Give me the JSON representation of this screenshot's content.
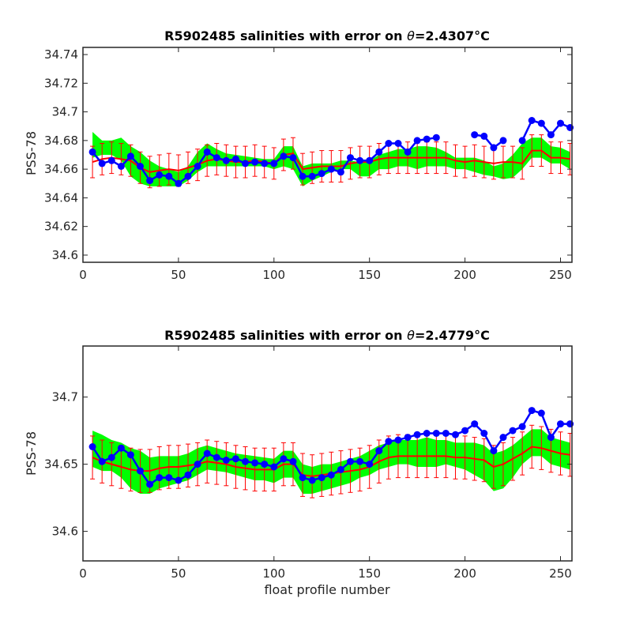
{
  "chart_data": [
    {
      "type": "scatter",
      "title_prefix": "R5902485 salinities with error on ",
      "title_theta": "θ",
      "title_value": "=2.4307",
      "title_unit": "°C",
      "xlabel": "",
      "ylabel": "PSS-78",
      "xlim": [
        0,
        256
      ],
      "ylim": [
        34.595,
        34.745
      ],
      "xticks": [
        0,
        50,
        100,
        150,
        200,
        250
      ],
      "yticks": [
        34.6,
        34.62,
        34.64,
        34.66,
        34.68,
        34.7,
        34.72,
        34.74
      ],
      "ytick_labels": [
        "34.6",
        "34.62",
        "34.64",
        "34.66",
        "34.68",
        "34.7",
        "34.72",
        "34.74"
      ],
      "grid": false,
      "colors": {
        "float": "#0000ff",
        "mapped": "#ff0000",
        "error_band": "#00ff00"
      },
      "float_salinity": {
        "x": [
          5,
          10,
          15,
          20,
          25,
          30,
          35,
          40,
          45,
          50,
          55,
          60,
          65,
          70,
          75,
          80,
          85,
          90,
          95,
          100,
          105,
          110,
          115,
          120,
          125,
          130,
          135,
          140,
          145,
          150,
          155,
          160,
          165,
          170,
          175,
          180,
          185,
          190,
          195,
          200,
          205,
          210,
          215,
          220,
          225,
          230,
          235,
          240,
          245,
          250,
          255
        ],
        "y": [
          34.672,
          34.664,
          34.666,
          34.662,
          34.669,
          34.662,
          34.652,
          34.656,
          34.655,
          34.65,
          34.655,
          34.662,
          34.672,
          34.668,
          34.666,
          34.667,
          34.664,
          34.665,
          34.664,
          34.664,
          34.669,
          34.668,
          34.655,
          34.655,
          34.657,
          34.66,
          34.658,
          34.668,
          34.666,
          34.666,
          34.672,
          34.678,
          34.678,
          34.672,
          34.68,
          34.681,
          34.682,
          null,
          null,
          null,
          34.684,
          34.683,
          34.675,
          34.68,
          null,
          34.68,
          34.694,
          34.692,
          34.684,
          34.692,
          34.689
        ]
      },
      "mapped_salinity": {
        "x": [
          5,
          10,
          15,
          20,
          25,
          30,
          35,
          40,
          45,
          50,
          55,
          60,
          65,
          70,
          75,
          80,
          85,
          90,
          95,
          100,
          105,
          110,
          115,
          120,
          125,
          130,
          135,
          140,
          145,
          150,
          155,
          160,
          165,
          170,
          175,
          180,
          185,
          190,
          195,
          200,
          205,
          210,
          215,
          220,
          225,
          230,
          235,
          240,
          245,
          250,
          255
        ],
        "y": [
          34.665,
          34.667,
          34.668,
          34.667,
          34.666,
          34.661,
          34.658,
          34.659,
          34.66,
          34.659,
          34.661,
          34.663,
          34.666,
          34.667,
          34.666,
          34.665,
          34.665,
          34.666,
          34.665,
          34.664,
          34.67,
          34.671,
          34.66,
          34.661,
          34.662,
          34.662,
          34.662,
          34.664,
          34.665,
          34.665,
          34.667,
          34.668,
          34.668,
          34.668,
          34.668,
          34.668,
          34.668,
          34.668,
          34.666,
          34.665,
          34.666,
          34.665,
          34.664,
          34.665,
          34.665,
          34.664,
          34.673,
          34.673,
          34.668,
          34.668,
          34.667
        ],
        "error": 0.011
      },
      "climatology_band": {
        "x": [
          5,
          10,
          15,
          20,
          25,
          30,
          35,
          40,
          45,
          50,
          55,
          60,
          65,
          70,
          75,
          80,
          85,
          90,
          95,
          100,
          105,
          110,
          115,
          120,
          125,
          130,
          135,
          140,
          145,
          150,
          155,
          160,
          165,
          170,
          175,
          180,
          185,
          190,
          195,
          200,
          205,
          210,
          215,
          220,
          225,
          230,
          235,
          240,
          245,
          250,
          255
        ],
        "lower": [
          34.668,
          34.67,
          34.67,
          34.666,
          34.655,
          34.65,
          34.648,
          34.648,
          34.648,
          34.648,
          34.652,
          34.658,
          34.662,
          34.662,
          34.662,
          34.662,
          34.662,
          34.662,
          34.662,
          34.66,
          34.662,
          34.66,
          34.648,
          34.652,
          34.655,
          34.658,
          34.66,
          34.66,
          34.655,
          34.655,
          34.66,
          34.66,
          34.662,
          34.662,
          34.66,
          34.662,
          34.662,
          34.662,
          34.66,
          34.66,
          34.658,
          34.656,
          34.655,
          34.653,
          34.654,
          34.66,
          34.668,
          34.668,
          34.664,
          34.664,
          34.66
        ],
        "upper": [
          34.686,
          34.68,
          34.68,
          34.682,
          34.676,
          34.672,
          34.666,
          34.662,
          34.66,
          34.658,
          34.662,
          34.672,
          34.678,
          34.674,
          34.671,
          34.67,
          34.669,
          34.668,
          34.667,
          34.667,
          34.676,
          34.676,
          34.662,
          34.664,
          34.664,
          34.664,
          34.666,
          34.666,
          34.665,
          34.666,
          34.67,
          34.672,
          34.674,
          34.674,
          34.676,
          34.676,
          34.675,
          34.672,
          34.668,
          34.668,
          34.668,
          34.666,
          34.662,
          34.664,
          34.67,
          34.678,
          34.682,
          34.682,
          34.676,
          34.675,
          34.672
        ]
      }
    },
    {
      "type": "scatter",
      "title_prefix": "R5902485 salinities with error on ",
      "title_theta": "θ",
      "title_value": "=2.4779",
      "title_unit": "°C",
      "xlabel": "float profile number",
      "ylabel": "PSS-78",
      "xlim": [
        0,
        256
      ],
      "ylim": [
        34.578,
        34.738
      ],
      "xticks": [
        0,
        50,
        100,
        150,
        200,
        250
      ],
      "yticks": [
        34.6,
        34.65,
        34.7
      ],
      "ytick_labels": [
        "34.6",
        "34.65",
        "34.7"
      ],
      "grid": false,
      "colors": {
        "float": "#0000ff",
        "mapped": "#ff0000",
        "error_band": "#00ff00"
      },
      "float_salinity": {
        "x": [
          5,
          10,
          15,
          20,
          25,
          30,
          35,
          40,
          45,
          50,
          55,
          60,
          65,
          70,
          75,
          80,
          85,
          90,
          95,
          100,
          105,
          110,
          115,
          120,
          125,
          130,
          135,
          140,
          145,
          150,
          155,
          160,
          165,
          170,
          175,
          180,
          185,
          190,
          195,
          200,
          205,
          210,
          215,
          220,
          225,
          230,
          235,
          240,
          245,
          250,
          255
        ],
        "y": [
          34.663,
          34.652,
          34.655,
          34.662,
          34.657,
          34.645,
          34.635,
          34.64,
          34.64,
          34.638,
          34.642,
          34.65,
          34.658,
          34.655,
          34.653,
          34.654,
          34.652,
          34.651,
          34.65,
          34.648,
          34.654,
          34.652,
          34.64,
          34.638,
          34.64,
          34.642,
          34.646,
          34.652,
          34.652,
          34.65,
          34.66,
          34.667,
          34.668,
          34.67,
          34.672,
          34.673,
          34.673,
          34.673,
          34.672,
          34.675,
          34.68,
          34.673,
          34.66,
          34.67,
          34.675,
          34.678,
          34.69,
          34.688,
          34.67,
          34.68,
          34.68
        ]
      },
      "mapped_salinity": {
        "x": [
          5,
          10,
          15,
          20,
          25,
          30,
          35,
          40,
          45,
          50,
          55,
          60,
          65,
          70,
          75,
          80,
          85,
          90,
          95,
          100,
          105,
          110,
          115,
          120,
          125,
          130,
          135,
          140,
          145,
          150,
          155,
          160,
          165,
          170,
          175,
          180,
          185,
          190,
          195,
          200,
          205,
          210,
          215,
          220,
          225,
          230,
          235,
          240,
          245,
          250,
          255
        ],
        "y": [
          34.655,
          34.652,
          34.65,
          34.648,
          34.646,
          34.645,
          34.645,
          34.647,
          34.648,
          34.648,
          34.649,
          34.65,
          34.652,
          34.651,
          34.65,
          34.648,
          34.647,
          34.646,
          34.646,
          34.646,
          34.65,
          34.65,
          34.642,
          34.641,
          34.642,
          34.643,
          34.644,
          34.645,
          34.646,
          34.648,
          34.652,
          34.655,
          34.656,
          34.656,
          34.656,
          34.656,
          34.656,
          34.656,
          34.655,
          34.655,
          34.654,
          34.653,
          34.648,
          34.65,
          34.654,
          34.658,
          34.663,
          34.662,
          34.66,
          34.658,
          34.657
        ],
        "error": 0.016
      },
      "climatology_band": {
        "x": [
          5,
          10,
          15,
          20,
          25,
          30,
          35,
          40,
          45,
          50,
          55,
          60,
          65,
          70,
          75,
          80,
          85,
          90,
          95,
          100,
          105,
          110,
          115,
          120,
          125,
          130,
          135,
          140,
          145,
          150,
          155,
          160,
          165,
          170,
          175,
          180,
          185,
          190,
          195,
          200,
          205,
          210,
          215,
          220,
          225,
          230,
          235,
          240,
          245,
          250,
          255
        ],
        "lower": [
          34.648,
          34.645,
          34.645,
          34.64,
          34.632,
          34.628,
          34.628,
          34.632,
          34.634,
          34.636,
          34.638,
          34.642,
          34.646,
          34.645,
          34.644,
          34.642,
          34.64,
          34.638,
          34.638,
          34.636,
          34.64,
          34.64,
          34.628,
          34.628,
          34.63,
          34.632,
          34.634,
          34.636,
          34.64,
          34.642,
          34.646,
          34.648,
          34.65,
          34.65,
          34.648,
          34.648,
          34.648,
          34.65,
          34.648,
          34.646,
          34.642,
          34.638,
          34.63,
          34.632,
          34.64,
          34.65,
          34.656,
          34.656,
          34.65,
          34.648,
          34.646
        ],
        "upper": [
          34.675,
          34.672,
          34.668,
          34.666,
          34.662,
          34.66,
          34.655,
          34.656,
          34.656,
          34.656,
          34.658,
          34.662,
          34.664,
          34.662,
          34.66,
          34.658,
          34.657,
          34.656,
          34.655,
          34.654,
          34.66,
          34.66,
          34.65,
          34.648,
          34.65,
          34.65,
          34.652,
          34.654,
          34.656,
          34.66,
          34.664,
          34.666,
          34.668,
          34.668,
          34.668,
          34.67,
          34.668,
          34.668,
          34.666,
          34.666,
          34.666,
          34.664,
          34.658,
          34.66,
          34.664,
          34.67,
          34.676,
          34.676,
          34.67,
          34.668,
          34.666
        ]
      }
    }
  ]
}
